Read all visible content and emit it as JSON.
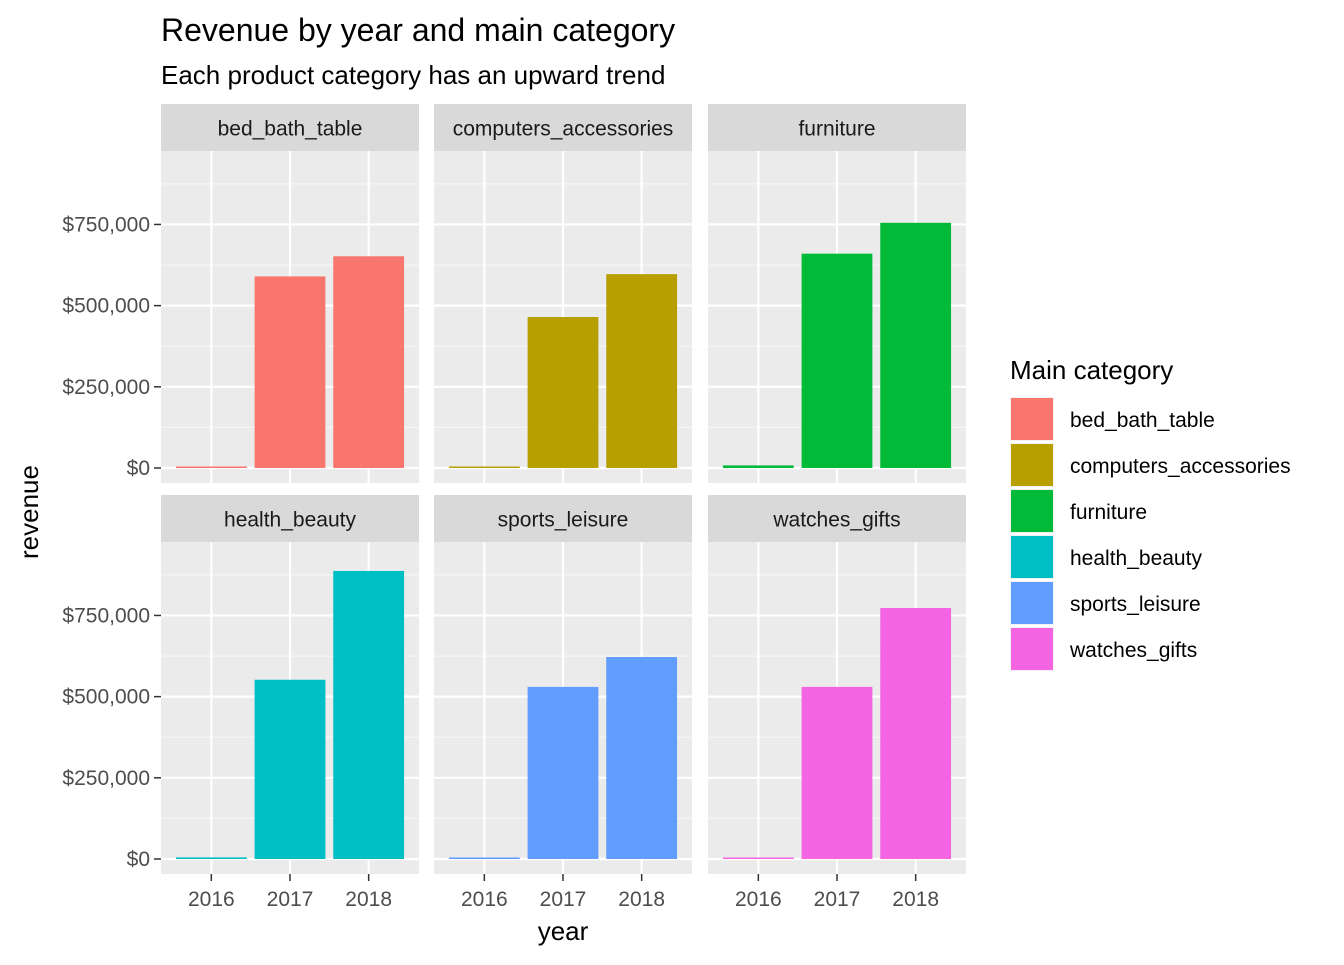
{
  "chart_data": {
    "type": "bar",
    "title": "Revenue by year and main category",
    "subtitle": "Each product category has an upward trend",
    "xlabel": "year",
    "ylabel": "revenue",
    "categories": [
      "2016",
      "2017",
      "2018"
    ],
    "ylim": [
      0,
      930000
    ],
    "y_ticks": [
      0,
      250000,
      500000,
      750000
    ],
    "y_tick_labels": [
      "$0",
      "$250,000",
      "$500,000",
      "$750,000"
    ],
    "grid": true,
    "facet_layout": "2 rows x 3 columns",
    "legend": {
      "title": "Main category",
      "position": "right"
    },
    "series": [
      {
        "name": "bed_bath_table",
        "color": "#F8766D",
        "values": [
          1500,
          590000,
          652000
        ]
      },
      {
        "name": "computers_accessories",
        "color": "#B79F00",
        "values": [
          2000,
          465000,
          597000
        ]
      },
      {
        "name": "furniture",
        "color": "#00BA38",
        "values": [
          8000,
          660000,
          755000
        ]
      },
      {
        "name": "health_beauty",
        "color": "#00BFC4",
        "values": [
          5000,
          552000,
          887000
        ]
      },
      {
        "name": "sports_leisure",
        "color": "#619CFF",
        "values": [
          2000,
          530000,
          622000
        ]
      },
      {
        "name": "watches_gifts",
        "color": "#F564E3",
        "values": [
          1500,
          530000,
          773000
        ]
      }
    ]
  }
}
